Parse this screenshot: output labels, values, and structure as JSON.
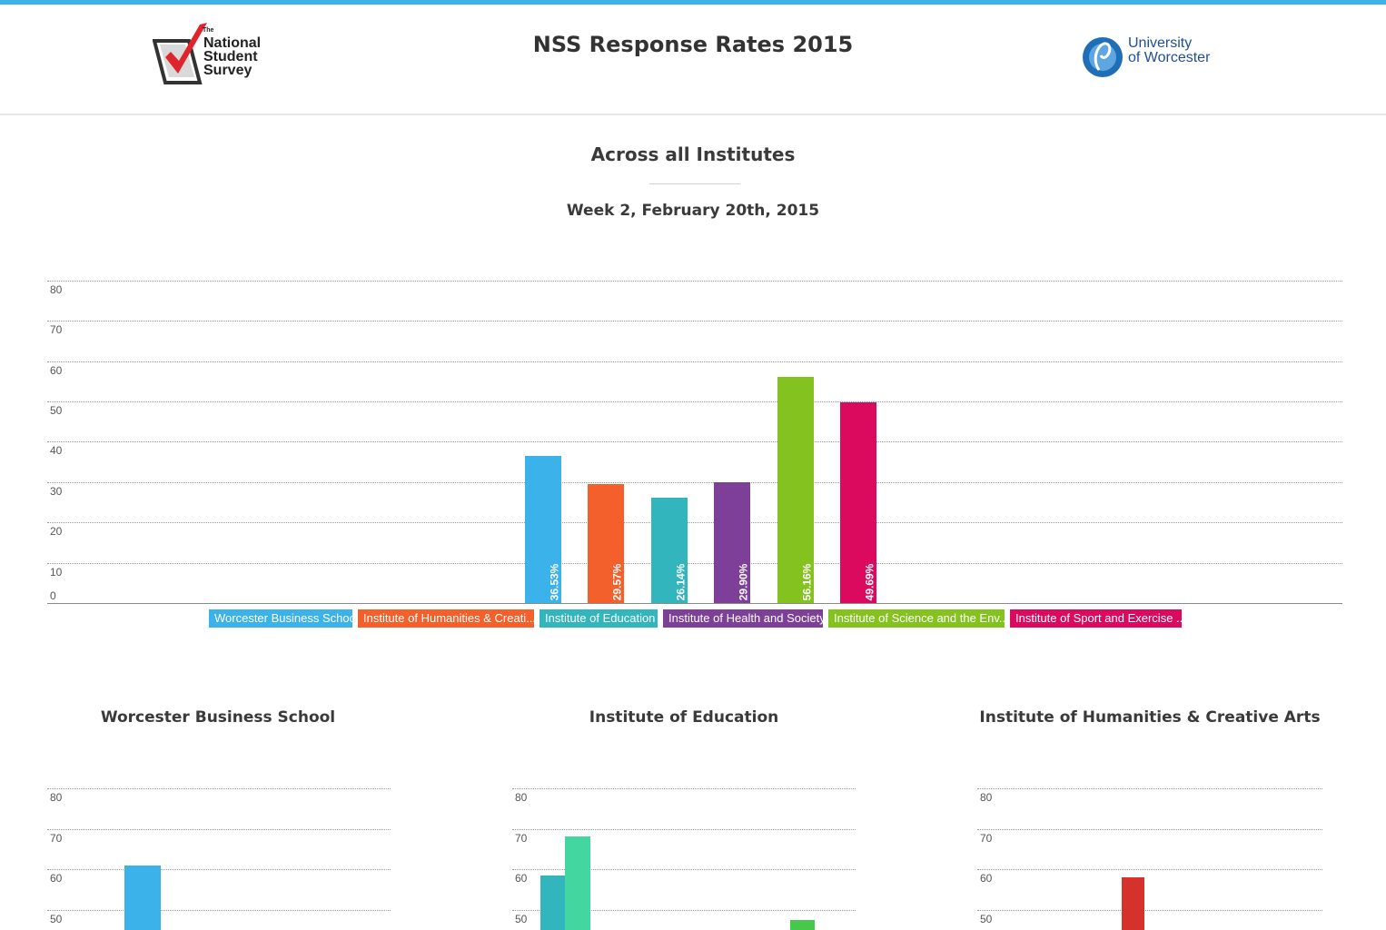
{
  "header": {
    "title": "NSS Response Rates 2015",
    "nss_logo": {
      "the": "The",
      "line1": "National",
      "line2": "Student",
      "line3": "Survey"
    },
    "uw_logo": {
      "line1": "University",
      "line2": "of Worcester"
    }
  },
  "main": {
    "title": "Across all Institutes",
    "subtitle": "Week 2, February 20th, 2015"
  },
  "chart_data": [
    {
      "type": "bar",
      "title": "Across all Institutes",
      "ylim": [
        0,
        80
      ],
      "yticks": [
        0,
        10,
        20,
        30,
        40,
        50,
        60,
        70,
        80
      ],
      "grid": true,
      "legend": "bottom",
      "categories": [
        "Worcester Business School",
        "Institute of Humanities & Creati...",
        "Institute of Education",
        "Institute of Health and Society",
        "Institute of Science and the Env...",
        "Institute of Sport and Exercise ..."
      ],
      "values": [
        36.53,
        29.57,
        26.14,
        29.9,
        56.16,
        49.69
      ],
      "value_labels": [
        "36.53%",
        "29.57%",
        "26.14%",
        "29.90%",
        "56.16%",
        "49.69%"
      ],
      "colors": [
        "#3bb3ea",
        "#f4602b",
        "#33b5bd",
        "#7d3f98",
        "#84c31f",
        "#dc0a5e"
      ]
    },
    {
      "type": "bar",
      "title": "Worcester Business School",
      "ylim": [
        0,
        80
      ],
      "yticks": [
        50,
        60,
        70,
        80
      ],
      "values": [
        61
      ],
      "colors": [
        "#3bb3ea"
      ]
    },
    {
      "type": "bar",
      "title": "Institute of Education",
      "ylim": [
        0,
        80
      ],
      "yticks": [
        50,
        60,
        70,
        80
      ],
      "values": [
        58.5,
        68,
        47.5
      ],
      "colors": [
        "#33b5bd",
        "#43d6a1",
        "#46c94a"
      ]
    },
    {
      "type": "bar",
      "title": "Institute of Humanities & Creative Arts",
      "ylim": [
        0,
        80
      ],
      "yticks": [
        50,
        60,
        70,
        80
      ],
      "values": [
        58
      ],
      "colors": [
        "#d4322a"
      ]
    }
  ]
}
